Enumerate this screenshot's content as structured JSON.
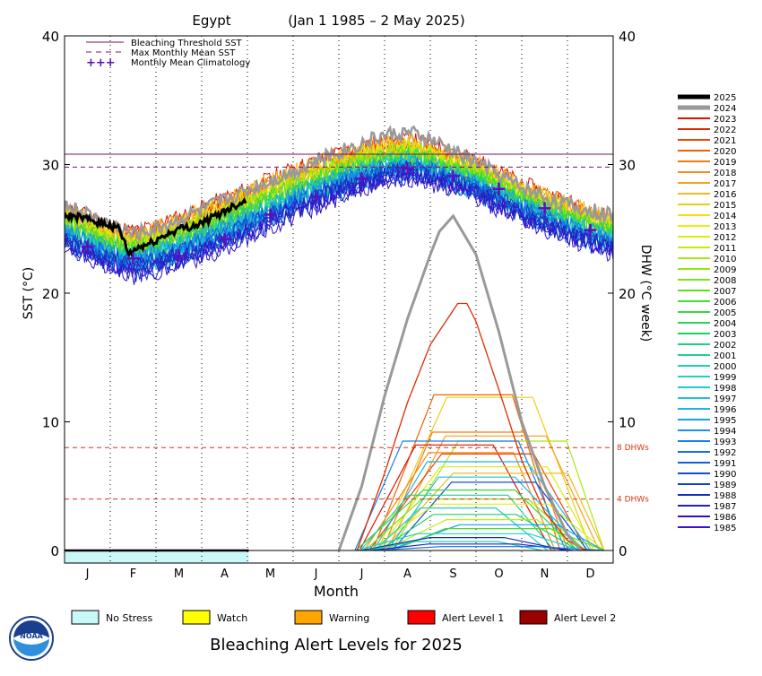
{
  "chart_data": {
    "type": "line",
    "title": "Egypt",
    "date_range": "(Jan 1 1985 – 2 May 2025)",
    "xlabel": "Month",
    "ylabel_left": "SST (°C)",
    "ylabel_right": "DHW (°C week)",
    "ylim": [
      0,
      40
    ],
    "yticks": [
      0,
      10,
      20,
      30,
      40
    ],
    "months": [
      "J",
      "F",
      "M",
      "A",
      "M",
      "J",
      "J",
      "A",
      "S",
      "O",
      "N",
      "D"
    ],
    "grid": "vertical dotted month separators",
    "legend_placement": "top-left",
    "bleaching_threshold_sst": 30.8,
    "max_monthly_mean_sst": 29.8,
    "dhw_reference_lines": [
      {
        "value": 8,
        "label": "8 DHWs"
      },
      {
        "value": 4,
        "label": "4 DHWs"
      }
    ],
    "legend_entries": [
      {
        "label": "Bleaching Threshold SST",
        "style": "solid",
        "color": "#7a1060"
      },
      {
        "label": "Max Monthly Mean SST",
        "style": "dashed",
        "color": "#7a1060"
      },
      {
        "label": "Monthly Mean Climatology",
        "style": "plus",
        "color": "#5b0fbf"
      }
    ],
    "climatology": {
      "x": [
        0.5,
        1.5,
        2.5,
        3.5,
        4.5,
        5.5,
        6.5,
        7.5,
        8.5,
        9.5,
        10.5,
        11.5
      ],
      "y": [
        23.6,
        22.7,
        22.9,
        24.2,
        26.1,
        27.5,
        28.9,
        29.7,
        29.1,
        28.1,
        26.6,
        24.9
      ]
    },
    "sst_2025": {
      "x": [
        0,
        0.3,
        0.6,
        0.9,
        1.2,
        1.4,
        1.6,
        1.9,
        2.2,
        2.5,
        2.8,
        3.1,
        3.4,
        3.7,
        3.97
      ],
      "y": [
        26.0,
        25.9,
        25.6,
        25.4,
        25.0,
        23.0,
        23.5,
        23.9,
        24.5,
        25.0,
        25.2,
        25.6,
        26.2,
        26.8,
        27.2
      ]
    },
    "sst_2024": {
      "x": [
        0,
        1,
        1.5,
        2,
        3,
        4,
        5,
        6,
        7,
        7.5,
        8,
        9,
        10,
        11,
        12
      ],
      "y": [
        26.9,
        25.4,
        24.6,
        25.0,
        26.5,
        28.0,
        29.5,
        31.0,
        32.3,
        32.5,
        31.9,
        30.2,
        28.2,
        26.8,
        26.0
      ]
    },
    "sst_envelope": {
      "x": [
        0,
        1,
        1.5,
        2,
        3,
        4,
        5,
        6,
        7,
        7.5,
        8,
        9,
        10,
        11,
        12
      ],
      "upper": [
        27.3,
        25.8,
        25.4,
        25.8,
        27.3,
        28.8,
        30.3,
        31.5,
        32.4,
        32.5,
        32.0,
        30.8,
        29.0,
        27.6,
        26.4
      ],
      "lower": [
        23.2,
        21.6,
        21.0,
        21.3,
        22.4,
        23.9,
        25.6,
        27.1,
        28.3,
        28.6,
        28.3,
        27.1,
        25.4,
        23.9,
        22.8
      ]
    },
    "dhw_2024": {
      "x": [
        6.0,
        6.5,
        7.0,
        7.5,
        8.0,
        8.2,
        8.5,
        9.0,
        9.5,
        10.0,
        10.5,
        11.0,
        11.3
      ],
      "y": [
        0,
        5.0,
        12.0,
        18.0,
        23.0,
        24.8,
        26.0,
        23.0,
        17.0,
        10.0,
        5.0,
        1.2,
        0
      ]
    },
    "dhw_2022": {
      "x": [
        6.4,
        7.0,
        7.5,
        8.0,
        8.6,
        8.8,
        9.0,
        9.5,
        10.0,
        10.5,
        11.0,
        11.4
      ],
      "y": [
        0,
        6.0,
        11.5,
        16.0,
        19.2,
        19.2,
        17.8,
        12.5,
        7.0,
        3.0,
        0.8,
        0
      ]
    },
    "dhw_max_by_year": [
      {
        "year": "2020",
        "max": 12.1
      },
      {
        "year": "2015",
        "max": 11.9
      },
      {
        "year": "2019",
        "max": 9.2
      },
      {
        "year": "2017",
        "max": 8.9
      },
      {
        "year": "2010",
        "max": 8.5
      },
      {
        "year": "1993",
        "max": 8.5
      },
      {
        "year": "2023",
        "max": 8.2
      },
      {
        "year": "2018",
        "max": 7.6
      },
      {
        "year": "2021",
        "max": 7.5
      },
      {
        "year": "1996",
        "max": 6.9
      },
      {
        "year": "2012",
        "max": 6.5
      },
      {
        "year": "2016",
        "max": 6.0
      },
      {
        "year": "1997",
        "max": 5.7
      },
      {
        "year": "1990",
        "max": 5.3
      },
      {
        "year": "2005",
        "max": 4.7
      },
      {
        "year": "2001",
        "max": 4.3
      },
      {
        "year": "2008",
        "max": 4.0
      },
      {
        "year": "2013",
        "max": 3.6
      },
      {
        "year": "1999",
        "max": 3.3
      },
      {
        "year": "2003",
        "max": 2.8
      },
      {
        "year": "2011",
        "max": 2.4
      },
      {
        "year": "1995",
        "max": 2.0
      },
      {
        "year": "2006",
        "max": 1.7
      },
      {
        "year": "1998",
        "max": 1.3
      },
      {
        "year": "1988",
        "max": 1.0
      },
      {
        "year": "2000",
        "max": 0.7
      },
      {
        "year": "1987",
        "max": 0.5
      },
      {
        "year": "1992",
        "max": 0.3
      }
    ],
    "alert_2025": {
      "level": "No Stress",
      "from_month": 0,
      "to_month": 4.03
    },
    "years_legend": [
      "2025",
      "2024",
      "2023",
      "2022",
      "2021",
      "2020",
      "2019",
      "2018",
      "2017",
      "2016",
      "2015",
      "2014",
      "2013",
      "2012",
      "2011",
      "2010",
      "2009",
      "2008",
      "2007",
      "2006",
      "2005",
      "2004",
      "2003",
      "2002",
      "2001",
      "2000",
      "1999",
      "1998",
      "1997",
      "1996",
      "1995",
      "1994",
      "1993",
      "1992",
      "1991",
      "1990",
      "1989",
      "1988",
      "1987",
      "1986",
      "1985"
    ],
    "year_colors": {
      "2025": "#000000",
      "2024": "#999999",
      "2023": "#dd1100",
      "2022": "#e02a00",
      "2021": "#e84800",
      "2020": "#f06000",
      "2019": "#f47a10",
      "2018": "#f48a20",
      "2017": "#f4a020",
      "2016": "#f4b820",
      "2015": "#f0cc10",
      "2014": "#f0e010",
      "2013": "#e8ee10",
      "2012": "#d8ee10",
      "2011": "#c0ec10",
      "2010": "#a8ea10",
      "2009": "#90e810",
      "2008": "#78e418",
      "2007": "#5ce020",
      "2006": "#48dc30",
      "2005": "#38d840",
      "2004": "#28d450",
      "2003": "#20d064",
      "2002": "#20d07a",
      "2001": "#20d090",
      "2000": "#20d0a8",
      "1999": "#20d0c0",
      "1998": "#20ccd4",
      "1997": "#20c0e0",
      "1996": "#20b0e8",
      "1995": "#18a0ec",
      "1994": "#1890ec",
      "1993": "#1880e8",
      "1992": "#1470e0",
      "1991": "#1060d8",
      "1990": "#1050d0",
      "1989": "#1040c8",
      "1988": "#1030c0",
      "1987": "#2020c0",
      "1986": "#3010c8",
      "1985": "#4010d0"
    },
    "alert_levels": [
      {
        "label": "No Stress",
        "color": "#c8f8f8"
      },
      {
        "label": "Watch",
        "color": "#ffff00"
      },
      {
        "label": "Warning",
        "color": "#ffa500"
      },
      {
        "label": "Alert Level 1",
        "color": "#ff0000"
      },
      {
        "label": "Alert Level 2",
        "color": "#990000"
      }
    ],
    "footer_title": "Bleaching Alert Levels for 2025",
    "logo_text": "NOAA"
  }
}
